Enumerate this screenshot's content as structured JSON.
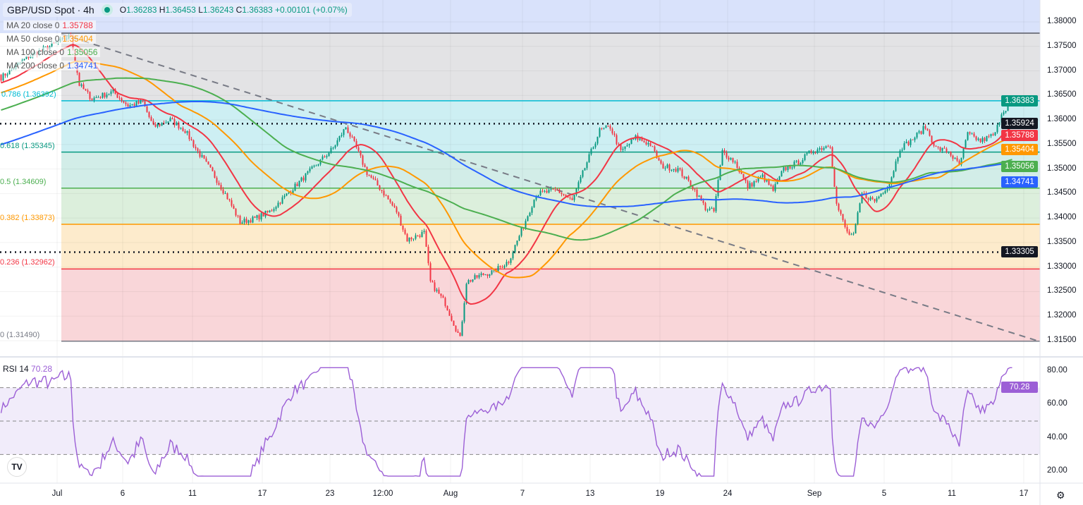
{
  "header": {
    "symbol": "GBP/USD Spot · 4h",
    "open": "1.36283",
    "high": "1.36453",
    "low": "1.36243",
    "close": "1.36383",
    "change": "+0.00101 (+0.07%)",
    "o_label": "O",
    "h_label": "H",
    "l_label": "L",
    "c_label": "C"
  },
  "mas": [
    {
      "label": "MA 20 close 0",
      "value": "1.35788",
      "color": "#f23645"
    },
    {
      "label": "MA 50 close 0",
      "value": "1.35404",
      "color": "#ff9800"
    },
    {
      "label": "MA 100 close 0",
      "value": "1.35056",
      "color": "#4caf50"
    },
    {
      "label": "MA 200 close 0",
      "value": "1.34741",
      "color": "#2962ff"
    }
  ],
  "fib": [
    {
      "label": "0.786 (1.36392)",
      "level": 1.36392,
      "color": "#00bcd4",
      "fill": "#cdeff3"
    },
    {
      "label": "0.618 (1.35345)",
      "level": 1.35345,
      "color": "#089981",
      "fill": "#d2ede8"
    },
    {
      "label": "0.5 (1.34609)",
      "level": 1.34609,
      "color": "#4caf50",
      "fill": "#dcefdc"
    },
    {
      "label": "0.382 (1.33873)",
      "level": 1.33873,
      "color": "#ff9800",
      "fill": "#fdebcc"
    },
    {
      "label": "0.236 (1.32962)",
      "level": 1.32962,
      "color": "#f23645",
      "fill": "#f9d6d9"
    },
    {
      "label": "0 (1.31490)",
      "level": 1.3149,
      "color": "#787b86",
      "fill": "#f9d6d9"
    }
  ],
  "price_tags": [
    {
      "value": "1.36383",
      "color": "#089981"
    },
    {
      "value": "1.35924",
      "color": "#131722"
    },
    {
      "value": "1.35788",
      "color": "#f23645"
    },
    {
      "value": "1.35404",
      "color": "#ff9800"
    },
    {
      "value": "1.35056",
      "color": "#4caf50"
    },
    {
      "value": "1.34741",
      "color": "#2962ff"
    },
    {
      "value": "1.33305",
      "color": "#131722"
    }
  ],
  "rsi": {
    "label": "RSI 14",
    "value": "70.28",
    "color": "#9c5fd6",
    "ticks": [
      "80.00",
      "60.00",
      "40.00",
      "20.00"
    ]
  },
  "chart_data": {
    "type": "candlestick",
    "title": "GBP/USD Spot · 4h",
    "ylim": [
      1.3125,
      1.3825
    ],
    "y_ticks": [
      "1.38000",
      "1.37500",
      "1.37000",
      "1.36500",
      "1.36000",
      "1.35500",
      "1.35000",
      "1.34500",
      "1.34000",
      "1.33500",
      "1.33000",
      "1.32500",
      "1.32000",
      "1.31500"
    ],
    "x_ticks": [
      {
        "label": "Jul",
        "bar": 27
      },
      {
        "label": "6",
        "bar": 58
      },
      {
        "label": "11",
        "bar": 91
      },
      {
        "label": "17",
        "bar": 124
      },
      {
        "label": "23",
        "bar": 156
      },
      {
        "label": "12:00",
        "bar": 181
      },
      {
        "label": "Aug",
        "bar": 213
      },
      {
        "label": "7",
        "bar": 247
      },
      {
        "label": "13",
        "bar": 279
      },
      {
        "label": "19",
        "bar": 312
      },
      {
        "label": "24",
        "bar": 344
      },
      {
        "label": "Sep",
        "bar": 385
      },
      {
        "label": "5",
        "bar": 418
      },
      {
        "label": "11",
        "bar": 450
      },
      {
        "label": "17",
        "bar": 484
      }
    ],
    "close_keypoints": [
      [
        0,
        1.36864
      ],
      [
        13,
        1.37295
      ],
      [
        27,
        1.37583
      ],
      [
        33,
        1.37727
      ],
      [
        37,
        1.3672
      ],
      [
        43,
        1.36432
      ],
      [
        53,
        1.36576
      ],
      [
        60,
        1.36289
      ],
      [
        67,
        1.36361
      ],
      [
        72,
        1.35857
      ],
      [
        80,
        1.36001
      ],
      [
        87,
        1.35785
      ],
      [
        93,
        1.35354
      ],
      [
        100,
        1.34922
      ],
      [
        107,
        1.34419
      ],
      [
        113,
        1.33916
      ],
      [
        120,
        1.33988
      ],
      [
        127,
        1.34132
      ],
      [
        137,
        1.34563
      ],
      [
        147,
        1.34995
      ],
      [
        157,
        1.35426
      ],
      [
        163,
        1.35857
      ],
      [
        168,
        1.35426
      ],
      [
        173,
        1.34922
      ],
      [
        180,
        1.34563
      ],
      [
        187,
        1.34132
      ],
      [
        192,
        1.33557
      ],
      [
        200,
        1.33701
      ],
      [
        203,
        1.32694
      ],
      [
        210,
        1.32263
      ],
      [
        217,
        1.31543
      ],
      [
        220,
        1.32694
      ],
      [
        227,
        1.32838
      ],
      [
        233,
        1.3291
      ],
      [
        240,
        1.33125
      ],
      [
        247,
        1.33844
      ],
      [
        253,
        1.34491
      ],
      [
        263,
        1.34563
      ],
      [
        270,
        1.34347
      ],
      [
        277,
        1.35138
      ],
      [
        283,
        1.35785
      ],
      [
        288,
        1.35857
      ],
      [
        293,
        1.35354
      ],
      [
        300,
        1.35642
      ],
      [
        307,
        1.35498
      ],
      [
        312,
        1.35067
      ],
      [
        320,
        1.34995
      ],
      [
        327,
        1.34635
      ],
      [
        333,
        1.34204
      ],
      [
        337,
        1.34132
      ],
      [
        341,
        1.35354
      ],
      [
        347,
        1.35138
      ],
      [
        353,
        1.34635
      ],
      [
        360,
        1.34851
      ],
      [
        365,
        1.34563
      ],
      [
        370,
        1.34995
      ],
      [
        377,
        1.35138
      ],
      [
        383,
        1.35354
      ],
      [
        392,
        1.35498
      ],
      [
        395,
        1.34276
      ],
      [
        400,
        1.33701
      ],
      [
        403,
        1.33629
      ],
      [
        407,
        1.34491
      ],
      [
        413,
        1.34347
      ],
      [
        420,
        1.34707
      ],
      [
        425,
        1.35426
      ],
      [
        430,
        1.3557
      ],
      [
        437,
        1.35857
      ],
      [
        442,
        1.35426
      ],
      [
        448,
        1.35354
      ],
      [
        453,
        1.35067
      ],
      [
        457,
        1.35714
      ],
      [
        463,
        1.3557
      ],
      [
        470,
        1.35714
      ],
      [
        473,
        1.36145
      ],
      [
        478,
        1.36383
      ]
    ],
    "horizontal_levels": [
      1.35924,
      1.33305
    ],
    "fib_top": 1.3775,
    "trendline": [
      [
        29,
        1.3775
      ],
      [
        491,
        1.3149
      ]
    ]
  }
}
